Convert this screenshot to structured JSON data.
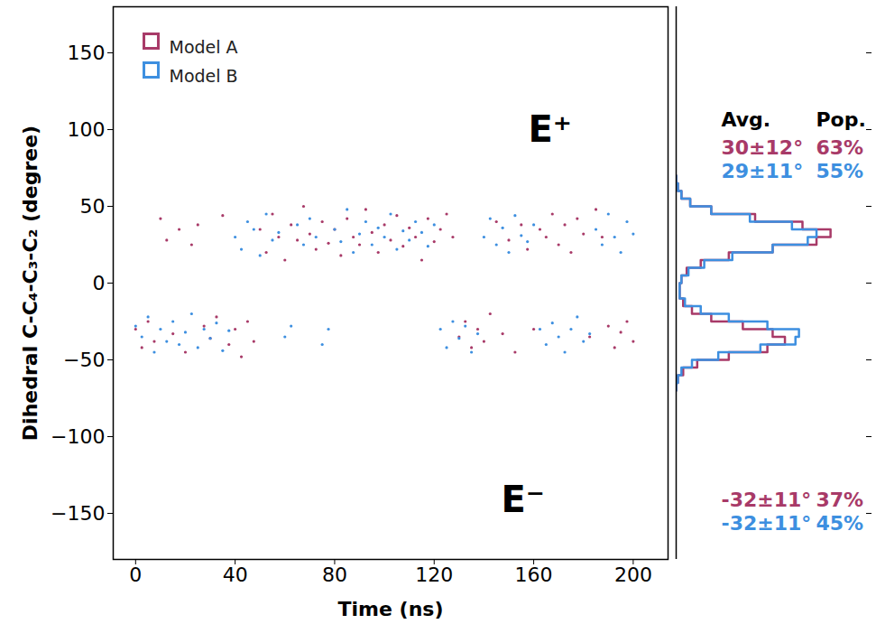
{
  "chart_data": [
    {
      "type": "scatter",
      "x_label": "Time (ns)",
      "y_label": "Dihedral C-C₄-C₃-C₂ (degree)",
      "xlim": [
        -9,
        214
      ],
      "xticks": [
        0,
        40,
        80,
        120,
        160,
        200
      ],
      "ylim": [
        -180,
        180
      ],
      "yticks": [
        -150,
        -100,
        -50,
        0,
        50,
        100,
        150
      ],
      "grid": false,
      "legend": "top-left",
      "annotations": [
        "E⁺",
        "E⁻"
      ],
      "series": [
        {
          "name": "Model A",
          "color": "#a83a68",
          "x": [
            0,
            2.5,
            5,
            7.5,
            10,
            12.5,
            15,
            17.5,
            20,
            22.5,
            25,
            27.5,
            30,
            32.5,
            35,
            37.5,
            40,
            42.5,
            45,
            47.5,
            50,
            52.5,
            55,
            57.5,
            60,
            62.5,
            65,
            67.5,
            70,
            72.5,
            75,
            77.5,
            80,
            82.5,
            85,
            87.5,
            90,
            92.5,
            95,
            97.5,
            100,
            102.5,
            105,
            107.5,
            110,
            112.5,
            115,
            117.5,
            120,
            122.5,
            125,
            127.5,
            130,
            132.5,
            135,
            137.5,
            140,
            142.5,
            145,
            147.5,
            150,
            152.5,
            155,
            157.5,
            160,
            162.5,
            165,
            167.5,
            170,
            172.5,
            175,
            177.5,
            180,
            182.5,
            185,
            187.5,
            190,
            192.5,
            195,
            197.5,
            200
          ],
          "values": [
            -30,
            -42,
            -25,
            -38,
            42,
            28,
            -33,
            35,
            -45,
            25,
            38,
            -28,
            -36,
            -22,
            44,
            -40,
            -30,
            -48,
            -25,
            -38,
            35,
            20,
            45,
            30,
            15,
            38,
            28,
            50,
            32,
            22,
            40,
            26,
            35,
            18,
            42,
            30,
            25,
            48,
            33,
            20,
            38,
            28,
            44,
            24,
            36,
            30,
            15,
            42,
            27,
            35,
            45,
            30,
            -35,
            -25,
            -42,
            -30,
            -38,
            -20,
            40,
            -33,
            28,
            -45,
            38,
            22,
            -30,
            35,
            30,
            45,
            25,
            38,
            20,
            42,
            32,
            -35,
            48,
            30,
            -28,
            -42,
            -32,
            -25,
            -38
          ]
        },
        {
          "name": "Model B",
          "color": "#3d8fe0",
          "x": [
            0,
            2.5,
            5,
            7.5,
            10,
            12.5,
            15,
            17.5,
            20,
            22.5,
            25,
            27.5,
            30,
            32.5,
            35,
            37.5,
            40,
            42.5,
            45,
            47.5,
            50,
            52.5,
            55,
            57.5,
            60,
            62.5,
            65,
            67.5,
            70,
            72.5,
            75,
            77.5,
            80,
            82.5,
            85,
            87.5,
            90,
            92.5,
            95,
            97.5,
            100,
            102.5,
            105,
            107.5,
            110,
            112.5,
            115,
            117.5,
            120,
            122.5,
            125,
            127.5,
            130,
            132.5,
            135,
            137.5,
            140,
            142.5,
            145,
            147.5,
            150,
            152.5,
            155,
            157.5,
            160,
            162.5,
            165,
            167.5,
            170,
            172.5,
            175,
            177.5,
            180,
            182.5,
            185,
            187.5,
            190,
            192.5,
            195,
            197.5,
            200
          ],
          "values": [
            -28,
            -35,
            -22,
            -45,
            -30,
            -38,
            -25,
            -40,
            -32,
            -20,
            -42,
            -30,
            -36,
            -26,
            -44,
            -31,
            30,
            22,
            40,
            35,
            18,
            45,
            28,
            33,
            -35,
            -28,
            38,
            25,
            42,
            30,
            -40,
            -30,
            35,
            27,
            48,
            20,
            32,
            40,
            25,
            36,
            30,
            45,
            22,
            34,
            28,
            40,
            33,
            24,
            38,
            -30,
            -42,
            -25,
            -36,
            -28,
            -45,
            -33,
            30,
            42,
            25,
            36,
            20,
            44,
            31,
            27,
            38,
            -30,
            -40,
            -26,
            -35,
            -45,
            -30,
            -22,
            -38,
            -33,
            35,
            25,
            45,
            30,
            20,
            40,
            32
          ]
        }
      ]
    },
    {
      "type": "histogram",
      "orientation": "horizontal",
      "tick_labels": false,
      "xlim": [
        0,
        108
      ],
      "ylim": [
        -180,
        180
      ],
      "yticks": [
        -150,
        -100,
        -50,
        0,
        50,
        100,
        150
      ],
      "bins": [
        -70,
        -65,
        -60,
        -55,
        -50,
        -45,
        -40,
        -35,
        -30,
        -25,
        -20,
        -15,
        -10,
        -5,
        0,
        5,
        10,
        15,
        20,
        25,
        30,
        35,
        40,
        45,
        50,
        55,
        60,
        65,
        70
      ],
      "series": [
        {
          "name": "Model A",
          "color": "#a83a68",
          "values": [
            0,
            1,
            4,
            12,
            30,
            52,
            62,
            55,
            38,
            20,
            9,
            4,
            2,
            2,
            3,
            6,
            14,
            30,
            55,
            80,
            88,
            72,
            45,
            20,
            8,
            3,
            1,
            0
          ]
        },
        {
          "name": "Model B",
          "color": "#3d8fe0",
          "values": [
            0,
            1,
            3,
            9,
            24,
            48,
            68,
            70,
            52,
            30,
            14,
            5,
            2,
            2,
            3,
            7,
            16,
            32,
            55,
            75,
            80,
            66,
            42,
            20,
            8,
            3,
            1,
            0
          ]
        }
      ],
      "annotations": {
        "header": [
          "Avg.",
          "Pop."
        ],
        "upper": [
          {
            "series": "Model A",
            "avg": "30±12°",
            "pop": "63%"
          },
          {
            "series": "Model B",
            "avg": "29±11°",
            "pop": "55%"
          }
        ],
        "lower": [
          {
            "series": "Model A",
            "avg": "-32±11°",
            "pop": "37%"
          },
          {
            "series": "Model B",
            "avg": "-32±11°",
            "pop": "45%"
          }
        ]
      }
    }
  ]
}
